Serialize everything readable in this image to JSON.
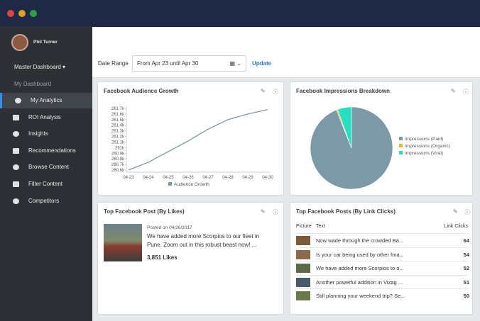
{
  "sidebar": {
    "user": "Phil Turner",
    "dashboard": "Master Dashboard",
    "sub": "My Dashboard",
    "nav": [
      "My Analytics",
      "ROI Analysis",
      "Insights",
      "Recommendations",
      "Browse Content",
      "Filter Content",
      "Competitors"
    ]
  },
  "toolbar": {
    "label": "Date Range",
    "range": "From Apr 23 until Apr 30",
    "button": "Update"
  },
  "panels": {
    "growth": {
      "title": "Facebook Audience Growth"
    },
    "impressions": {
      "title": "Facebook Impressions Breakdown"
    },
    "likes": {
      "title": "Top Facebook Post (By Likes)",
      "posted": "Posted on 04/26/2017",
      "text": "We have added more Scorpios to our fleet in Pune. Zoom out in this robust beast now! ...",
      "likes": "3,851 Likes"
    },
    "clicks": {
      "title": "Top Facebook Posts (By Link Clicks)",
      "headers": [
        "Picture",
        "Text",
        "Link Clicks"
      ],
      "rows": [
        [
          "Now wade through the crowded Ba...",
          64
        ],
        [
          "Is your car being used by other fma...",
          54
        ],
        [
          "We have added more Scorpios to o...",
          52
        ],
        [
          "Another powerful addition in Vizag ...",
          51
        ],
        [
          "Still planning your weekend trip? Se...",
          50
        ]
      ]
    }
  },
  "chart_data": [
    {
      "type": "line",
      "categories": [
        "04-23",
        "04-24",
        "04-25",
        "04-26",
        "04-27",
        "04-28",
        "04-29",
        "04-30"
      ],
      "series": [
        {
          "name": "Audience Growth",
          "color": "#7d98a6",
          "values": [
            260600,
            260740,
            260930,
            261120,
            261330,
            261500,
            261600,
            261680
          ]
        }
      ],
      "ylim": [
        260600,
        261700
      ],
      "yticks": [
        {
          "value": 260600,
          "label": "260.6k"
        },
        {
          "value": 260700,
          "label": "260.7k"
        },
        {
          "value": 260800,
          "label": "260.8k"
        },
        {
          "value": 260900,
          "label": "260.9k"
        },
        {
          "value": 261000,
          "label": "261k"
        },
        {
          "value": 261100,
          "label": "261.1k"
        },
        {
          "value": 261200,
          "label": "261.2k"
        },
        {
          "value": 261300,
          "label": "261.3k"
        },
        {
          "value": 261400,
          "label": "261.4k"
        },
        {
          "value": 261500,
          "label": "261.5k"
        },
        {
          "value": 261600,
          "label": "261.6k"
        },
        {
          "value": 261700,
          "label": "261.7k"
        }
      ],
      "legend": "bottom"
    },
    {
      "type": "pie",
      "categories": [
        "Impressions (Paid)",
        "Impressions (Organic)",
        "Impressions (Viral)"
      ],
      "values": [
        94,
        0.5,
        5.5
      ],
      "colors": [
        "#7d98a6",
        "#f0b41c",
        "#26e0c0"
      ],
      "legend": "right"
    }
  ]
}
